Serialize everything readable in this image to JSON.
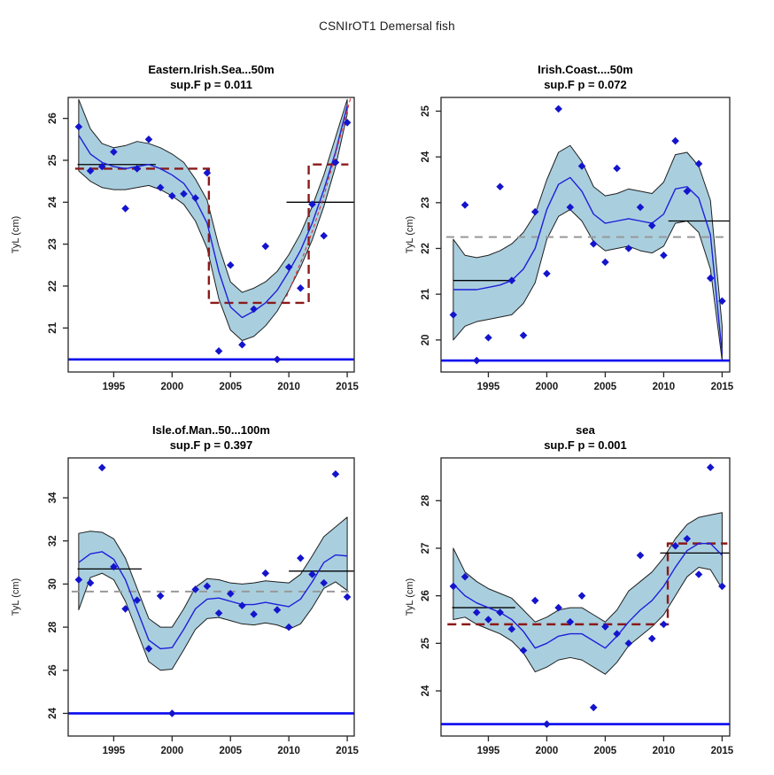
{
  "page_title": "CSNIrOT1 Demersal fish",
  "ylabel": "TyL (cm)",
  "years": [
    1992,
    1993,
    1994,
    1995,
    1996,
    1997,
    1998,
    1999,
    2000,
    2001,
    2002,
    2003,
    2004,
    2005,
    2006,
    2007,
    2008,
    2009,
    2010,
    2011,
    2012,
    2013,
    2014,
    2015
  ],
  "colors": {
    "band_fill": "#a9cfdf",
    "band_edge": "#1f1f1f",
    "smooth_line": "#1f1fd9",
    "point": "#1414cc",
    "const_line": "#0a0af0",
    "black_step": "#000000",
    "red_step": "#8b1a1a",
    "red_curve": "#e03030",
    "gray_dash": "#999999",
    "axis": "#262626"
  },
  "chart_data": [
    {
      "type": "line",
      "title": "Eastern.Irish.Sea...50m",
      "subtitle": "sup.F p = 0.011",
      "p_value": 0.011,
      "ylabel": "TyL (cm)",
      "xlim": [
        1991.1,
        2015.6
      ],
      "ylim": [
        19.95,
        26.5
      ],
      "x_ticks": [
        1995,
        2000,
        2005,
        2010,
        2015
      ],
      "y_ticks": [
        21,
        22,
        23,
        24,
        25,
        26
      ],
      "points": [
        25.8,
        24.75,
        24.85,
        25.2,
        23.85,
        24.8,
        25.5,
        24.35,
        24.15,
        24.2,
        24.1,
        24.7,
        20.45,
        22.5,
        20.6,
        21.45,
        22.95,
        20.25,
        22.45,
        21.95,
        23.95,
        23.2,
        24.95,
        25.9
      ],
      "smooth": [
        25.6,
        25.15,
        24.95,
        24.85,
        24.8,
        24.85,
        24.9,
        24.8,
        24.65,
        24.45,
        24.05,
        23.5,
        22.35,
        21.5,
        21.25,
        21.4,
        21.6,
        21.9,
        22.35,
        22.85,
        23.5,
        24.3,
        25.2,
        26.3
      ],
      "band_upper": [
        26.45,
        25.75,
        25.4,
        25.3,
        25.35,
        25.45,
        25.4,
        25.3,
        25.15,
        24.95,
        24.55,
        24.05,
        22.95,
        22.1,
        21.85,
        21.95,
        22.1,
        22.35,
        22.75,
        23.25,
        23.9,
        24.65,
        25.55,
        26.45
      ],
      "band_lower": [
        24.75,
        24.5,
        24.35,
        24.3,
        24.3,
        24.35,
        24.4,
        24.3,
        24.15,
        23.95,
        23.55,
        22.9,
        21.7,
        20.95,
        20.7,
        20.8,
        21.05,
        21.4,
        21.9,
        22.45,
        23.1,
        23.9,
        24.85,
        26.1
      ],
      "black_steps": [
        {
          "x1": 1991.9,
          "x2": 1998.6,
          "y": 24.9
        },
        {
          "x1": 2009.8,
          "x2": 2015.6,
          "y": 24.0
        }
      ],
      "red_step": [
        [
          1991.7,
          24.8
        ],
        [
          2003.15,
          24.8
        ],
        [
          2003.15,
          21.6
        ],
        [
          2011.7,
          21.6
        ],
        [
          2011.7,
          24.9
        ],
        [
          2015.1,
          24.9
        ]
      ],
      "red_curve": {
        "x": [
          2009.8,
          2011,
          2012,
          2013,
          2014,
          2015.3
        ],
        "values": [
          21.75,
          22.55,
          23.3,
          24.15,
          25.15,
          26.5
        ]
      },
      "gray_dash": null,
      "const_line": 20.25
    },
    {
      "type": "line",
      "title": "Irish.Coast....50m",
      "subtitle": "sup.F p = 0.072",
      "p_value": 0.072,
      "ylabel": "TyL (cm)",
      "xlim": [
        1990.95,
        2015.65
      ],
      "ylim": [
        19.3,
        25.3
      ],
      "x_ticks": [
        1995,
        2000,
        2005,
        2010,
        2015
      ],
      "y_ticks": [
        20,
        21,
        22,
        23,
        24,
        25
      ],
      "points": [
        20.55,
        22.95,
        19.55,
        20.05,
        23.35,
        21.3,
        20.1,
        22.8,
        21.45,
        25.05,
        22.9,
        23.8,
        22.1,
        21.7,
        23.75,
        22.0,
        22.9,
        22.5,
        21.85,
        24.35,
        23.25,
        23.85,
        21.35,
        20.85
      ],
      "smooth": [
        21.1,
        21.1,
        21.1,
        21.15,
        21.2,
        21.3,
        21.55,
        22.0,
        22.85,
        23.4,
        23.55,
        23.25,
        22.75,
        22.55,
        22.6,
        22.65,
        22.6,
        22.55,
        22.75,
        23.3,
        23.35,
        23.1,
        22.3,
        19.7
      ],
      "band_upper": [
        22.2,
        21.85,
        21.8,
        21.85,
        21.95,
        22.1,
        22.35,
        22.75,
        23.5,
        24.1,
        24.25,
        23.9,
        23.35,
        23.15,
        23.2,
        23.3,
        23.25,
        23.2,
        23.45,
        24.05,
        24.1,
        23.8,
        23.05,
        20.3
      ],
      "band_lower": [
        20.0,
        20.3,
        20.4,
        20.45,
        20.5,
        20.55,
        20.8,
        21.25,
        22.2,
        22.7,
        22.85,
        22.6,
        22.15,
        21.95,
        22.0,
        22.05,
        21.95,
        21.9,
        22.05,
        22.55,
        22.6,
        22.35,
        21.55,
        19.55
      ],
      "black_steps": [
        {
          "x1": 1992.0,
          "x2": 1997.3,
          "y": 21.3
        },
        {
          "x1": 2010.4,
          "x2": 2015.65,
          "y": 22.6
        }
      ],
      "red_step": null,
      "red_curve": null,
      "gray_dash": {
        "x1": 1991.4,
        "x2": 2015.5,
        "y": 22.25
      },
      "const_line": 19.55
    },
    {
      "type": "line",
      "title": "Isle.of.Man..50...100m",
      "subtitle": "sup.F p = 0.397",
      "p_value": 0.397,
      "ylabel": "TyL (cm)",
      "xlim": [
        1991.1,
        2015.6
      ],
      "ylim": [
        22.95,
        35.85
      ],
      "x_ticks": [
        1995,
        2000,
        2005,
        2010,
        2015
      ],
      "y_ticks": [
        24,
        26,
        28,
        30,
        32,
        34
      ],
      "points": [
        30.2,
        30.05,
        35.4,
        30.8,
        28.85,
        29.25,
        27.0,
        29.45,
        24.0,
        null,
        29.75,
        29.9,
        28.65,
        29.55,
        29.0,
        28.6,
        30.5,
        28.8,
        28.0,
        31.2,
        30.45,
        30.05,
        35.1,
        29.4
      ],
      "smooth": [
        31.0,
        31.4,
        31.5,
        31.15,
        30.2,
        28.8,
        27.4,
        27.0,
        27.05,
        27.9,
        28.85,
        29.3,
        29.35,
        29.2,
        29.05,
        29.05,
        29.15,
        29.05,
        28.95,
        29.3,
        30.1,
        31.0,
        31.35,
        31.3
      ],
      "band_upper": [
        32.35,
        32.45,
        32.4,
        32.1,
        31.2,
        29.8,
        28.4,
        28.0,
        28.0,
        28.85,
        29.85,
        30.25,
        30.2,
        30.05,
        30.0,
        30.05,
        30.15,
        30.1,
        30.05,
        30.45,
        31.3,
        32.2,
        32.65,
        33.1
      ],
      "band_lower": [
        28.8,
        30.3,
        30.5,
        30.2,
        29.2,
        27.8,
        26.4,
        26.0,
        26.05,
        26.95,
        27.9,
        28.4,
        28.45,
        28.3,
        28.15,
        28.1,
        28.2,
        28.1,
        27.9,
        28.15,
        28.9,
        29.8,
        30.1,
        29.7
      ],
      "black_steps": [
        {
          "x1": 1991.9,
          "x2": 1997.4,
          "y": 30.7
        },
        {
          "x1": 2010.0,
          "x2": 2015.6,
          "y": 30.6
        }
      ],
      "red_step": null,
      "red_curve": null,
      "gray_dash": {
        "x1": 1991.4,
        "x2": 2015.5,
        "y": 29.65
      },
      "const_line": 24.0
    },
    {
      "type": "line",
      "title": "sea",
      "subtitle": "sup.F p = 0.001",
      "p_value": 0.001,
      "ylabel": "TyL (cm)",
      "xlim": [
        1990.95,
        2015.65
      ],
      "ylim": [
        23.05,
        28.9
      ],
      "x_ticks": [
        1995,
        2000,
        2005,
        2010,
        2015
      ],
      "y_ticks": [
        24,
        25,
        26,
        27,
        28
      ],
      "points": [
        26.2,
        26.4,
        25.65,
        25.5,
        25.65,
        25.3,
        24.85,
        25.9,
        23.3,
        25.75,
        25.45,
        26.0,
        23.65,
        25.35,
        25.2,
        25.0,
        26.85,
        25.1,
        25.4,
        27.05,
        27.2,
        26.45,
        28.7,
        26.2
      ],
      "smooth": [
        26.25,
        26.0,
        25.85,
        25.75,
        25.65,
        25.5,
        25.25,
        24.9,
        25.0,
        25.15,
        25.2,
        25.2,
        25.05,
        24.9,
        25.15,
        25.45,
        25.7,
        25.9,
        26.2,
        26.6,
        26.95,
        27.1,
        27.1,
        26.85
      ],
      "band_upper": [
        27.0,
        26.5,
        26.3,
        26.15,
        26.05,
        25.95,
        25.7,
        25.45,
        25.55,
        25.7,
        25.75,
        25.75,
        25.6,
        25.45,
        25.7,
        26.1,
        26.3,
        26.5,
        26.8,
        27.2,
        27.5,
        27.65,
        27.7,
        27.75
      ],
      "band_lower": [
        25.5,
        25.55,
        25.4,
        25.3,
        25.2,
        25.05,
        24.8,
        24.4,
        24.5,
        24.65,
        24.7,
        24.65,
        24.5,
        24.35,
        24.6,
        24.95,
        25.15,
        25.35,
        25.6,
        26.0,
        26.4,
        26.6,
        26.55,
        26.15
      ],
      "black_steps": [
        {
          "x1": 1991.9,
          "x2": 1997.3,
          "y": 25.75
        },
        {
          "x1": 2009.7,
          "x2": 2015.6,
          "y": 26.9
        }
      ],
      "red_step": [
        [
          1991.5,
          25.4
        ],
        [
          2010.35,
          25.4
        ],
        [
          2010.35,
          27.1
        ],
        [
          2015.45,
          27.1
        ]
      ],
      "red_curve": null,
      "gray_dash": null,
      "const_line": 23.3
    }
  ]
}
